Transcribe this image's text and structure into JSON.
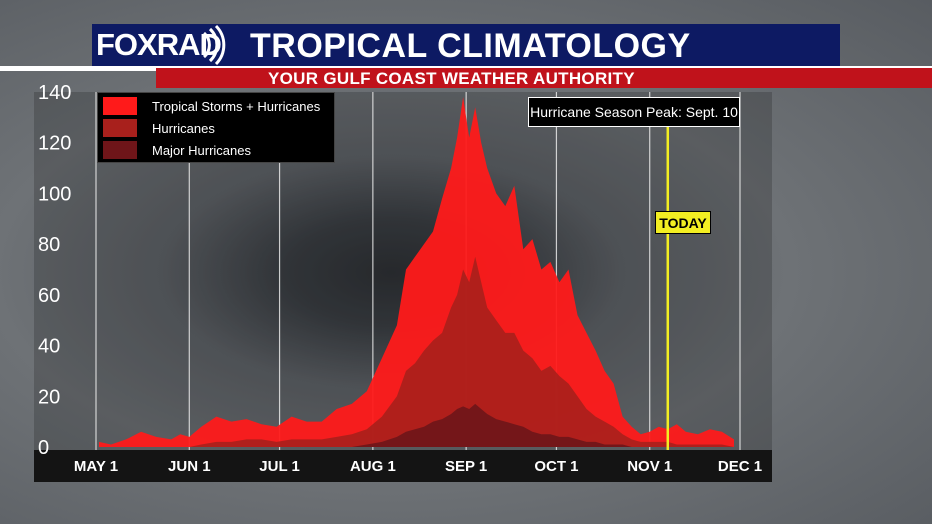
{
  "header": {
    "logo": "FOXRAD",
    "title": "TROPICAL CLIMATOLOGY",
    "subtitle": "YOUR GULF COAST WEATHER AUTHORITY"
  },
  "colors": {
    "header_blue": "#0d1a63",
    "header_red": "#c0121b",
    "tropical_storms_hurricanes": "#ff1a1a",
    "hurricanes": "#a8201c",
    "major_hurricanes": "#6e1519",
    "today_line": "#f3ee22"
  },
  "chart_data": {
    "type": "area",
    "title": "TROPICAL CLIMATOLOGY",
    "xlabel": "",
    "ylabel": "",
    "ylim": [
      0,
      140
    ],
    "xlim": [
      "May 1",
      "Dec 1"
    ],
    "yticks": [
      140,
      120,
      100,
      80,
      60,
      40,
      20,
      0
    ],
    "x_tick_labels": [
      "MAY 1",
      "JUN 1",
      "JUL 1",
      "AUG 1",
      "SEP 1",
      "OCT 1",
      "NOV 1",
      "DEC 1"
    ],
    "x_tick_days": [
      0,
      31,
      61,
      92,
      123,
      153,
      184,
      214
    ],
    "grid": "vertical",
    "legend_position": "top-left",
    "x_days_since_may_1": [
      1,
      5,
      10,
      15,
      20,
      25,
      28,
      31,
      35,
      40,
      45,
      50,
      55,
      60,
      65,
      70,
      75,
      80,
      85,
      90,
      95,
      100,
      103,
      106,
      109,
      112,
      115,
      118,
      120,
      122,
      124,
      126,
      128,
      130,
      133,
      136,
      139,
      142,
      145,
      148,
      151,
      154,
      157,
      160,
      163,
      166,
      169,
      172,
      175,
      178,
      181,
      184,
      187,
      190,
      193,
      196,
      200,
      204,
      208,
      212
    ],
    "series": [
      {
        "name": "Tropical Storms + Hurricanes",
        "color": "#ff1a1a",
        "values": [
          2,
          1,
          3,
          6,
          4,
          3,
          5,
          4,
          8,
          12,
          10,
          11,
          9,
          8,
          12,
          10,
          10,
          15,
          17,
          22,
          35,
          48,
          70,
          75,
          80,
          85,
          98,
          110,
          122,
          138,
          122,
          134,
          120,
          110,
          100,
          95,
          103,
          78,
          82,
          70,
          73,
          65,
          70,
          52,
          45,
          38,
          30,
          25,
          12,
          8,
          5,
          6,
          8,
          7,
          9,
          6,
          5,
          7,
          6,
          3
        ],
        "note_values_reading_back_to": "Dec 1"
      },
      {
        "name": "Hurricanes",
        "color": "#a8201c",
        "values": [
          0,
          0,
          0,
          0,
          0,
          0,
          0,
          0,
          1,
          2,
          2,
          3,
          3,
          2,
          3,
          3,
          3,
          4,
          5,
          7,
          12,
          20,
          30,
          33,
          38,
          42,
          45,
          55,
          60,
          70,
          65,
          75,
          65,
          55,
          50,
          45,
          45,
          38,
          35,
          30,
          32,
          28,
          25,
          20,
          15,
          12,
          10,
          8,
          5,
          3,
          2,
          2,
          2,
          2,
          1,
          1,
          1,
          1,
          1,
          0
        ]
      },
      {
        "name": "Major Hurricanes",
        "color": "#6e1519",
        "values": [
          0,
          0,
          0,
          0,
          0,
          0,
          0,
          0,
          0,
          0,
          0,
          0,
          0,
          0,
          0,
          0,
          0,
          0,
          0,
          1,
          2,
          4,
          6,
          7,
          8,
          10,
          11,
          13,
          15,
          16,
          15,
          17,
          15,
          13,
          11,
          10,
          9,
          8,
          6,
          5,
          5,
          4,
          4,
          3,
          2,
          2,
          1,
          1,
          1,
          0,
          0,
          0,
          0,
          0,
          0,
          0,
          0,
          0,
          0,
          0
        ]
      }
    ],
    "annotations": {
      "peak_label": "Hurricane Season Peak: Sept. 10",
      "today_label": "TODAY",
      "today_day": 190
    }
  }
}
